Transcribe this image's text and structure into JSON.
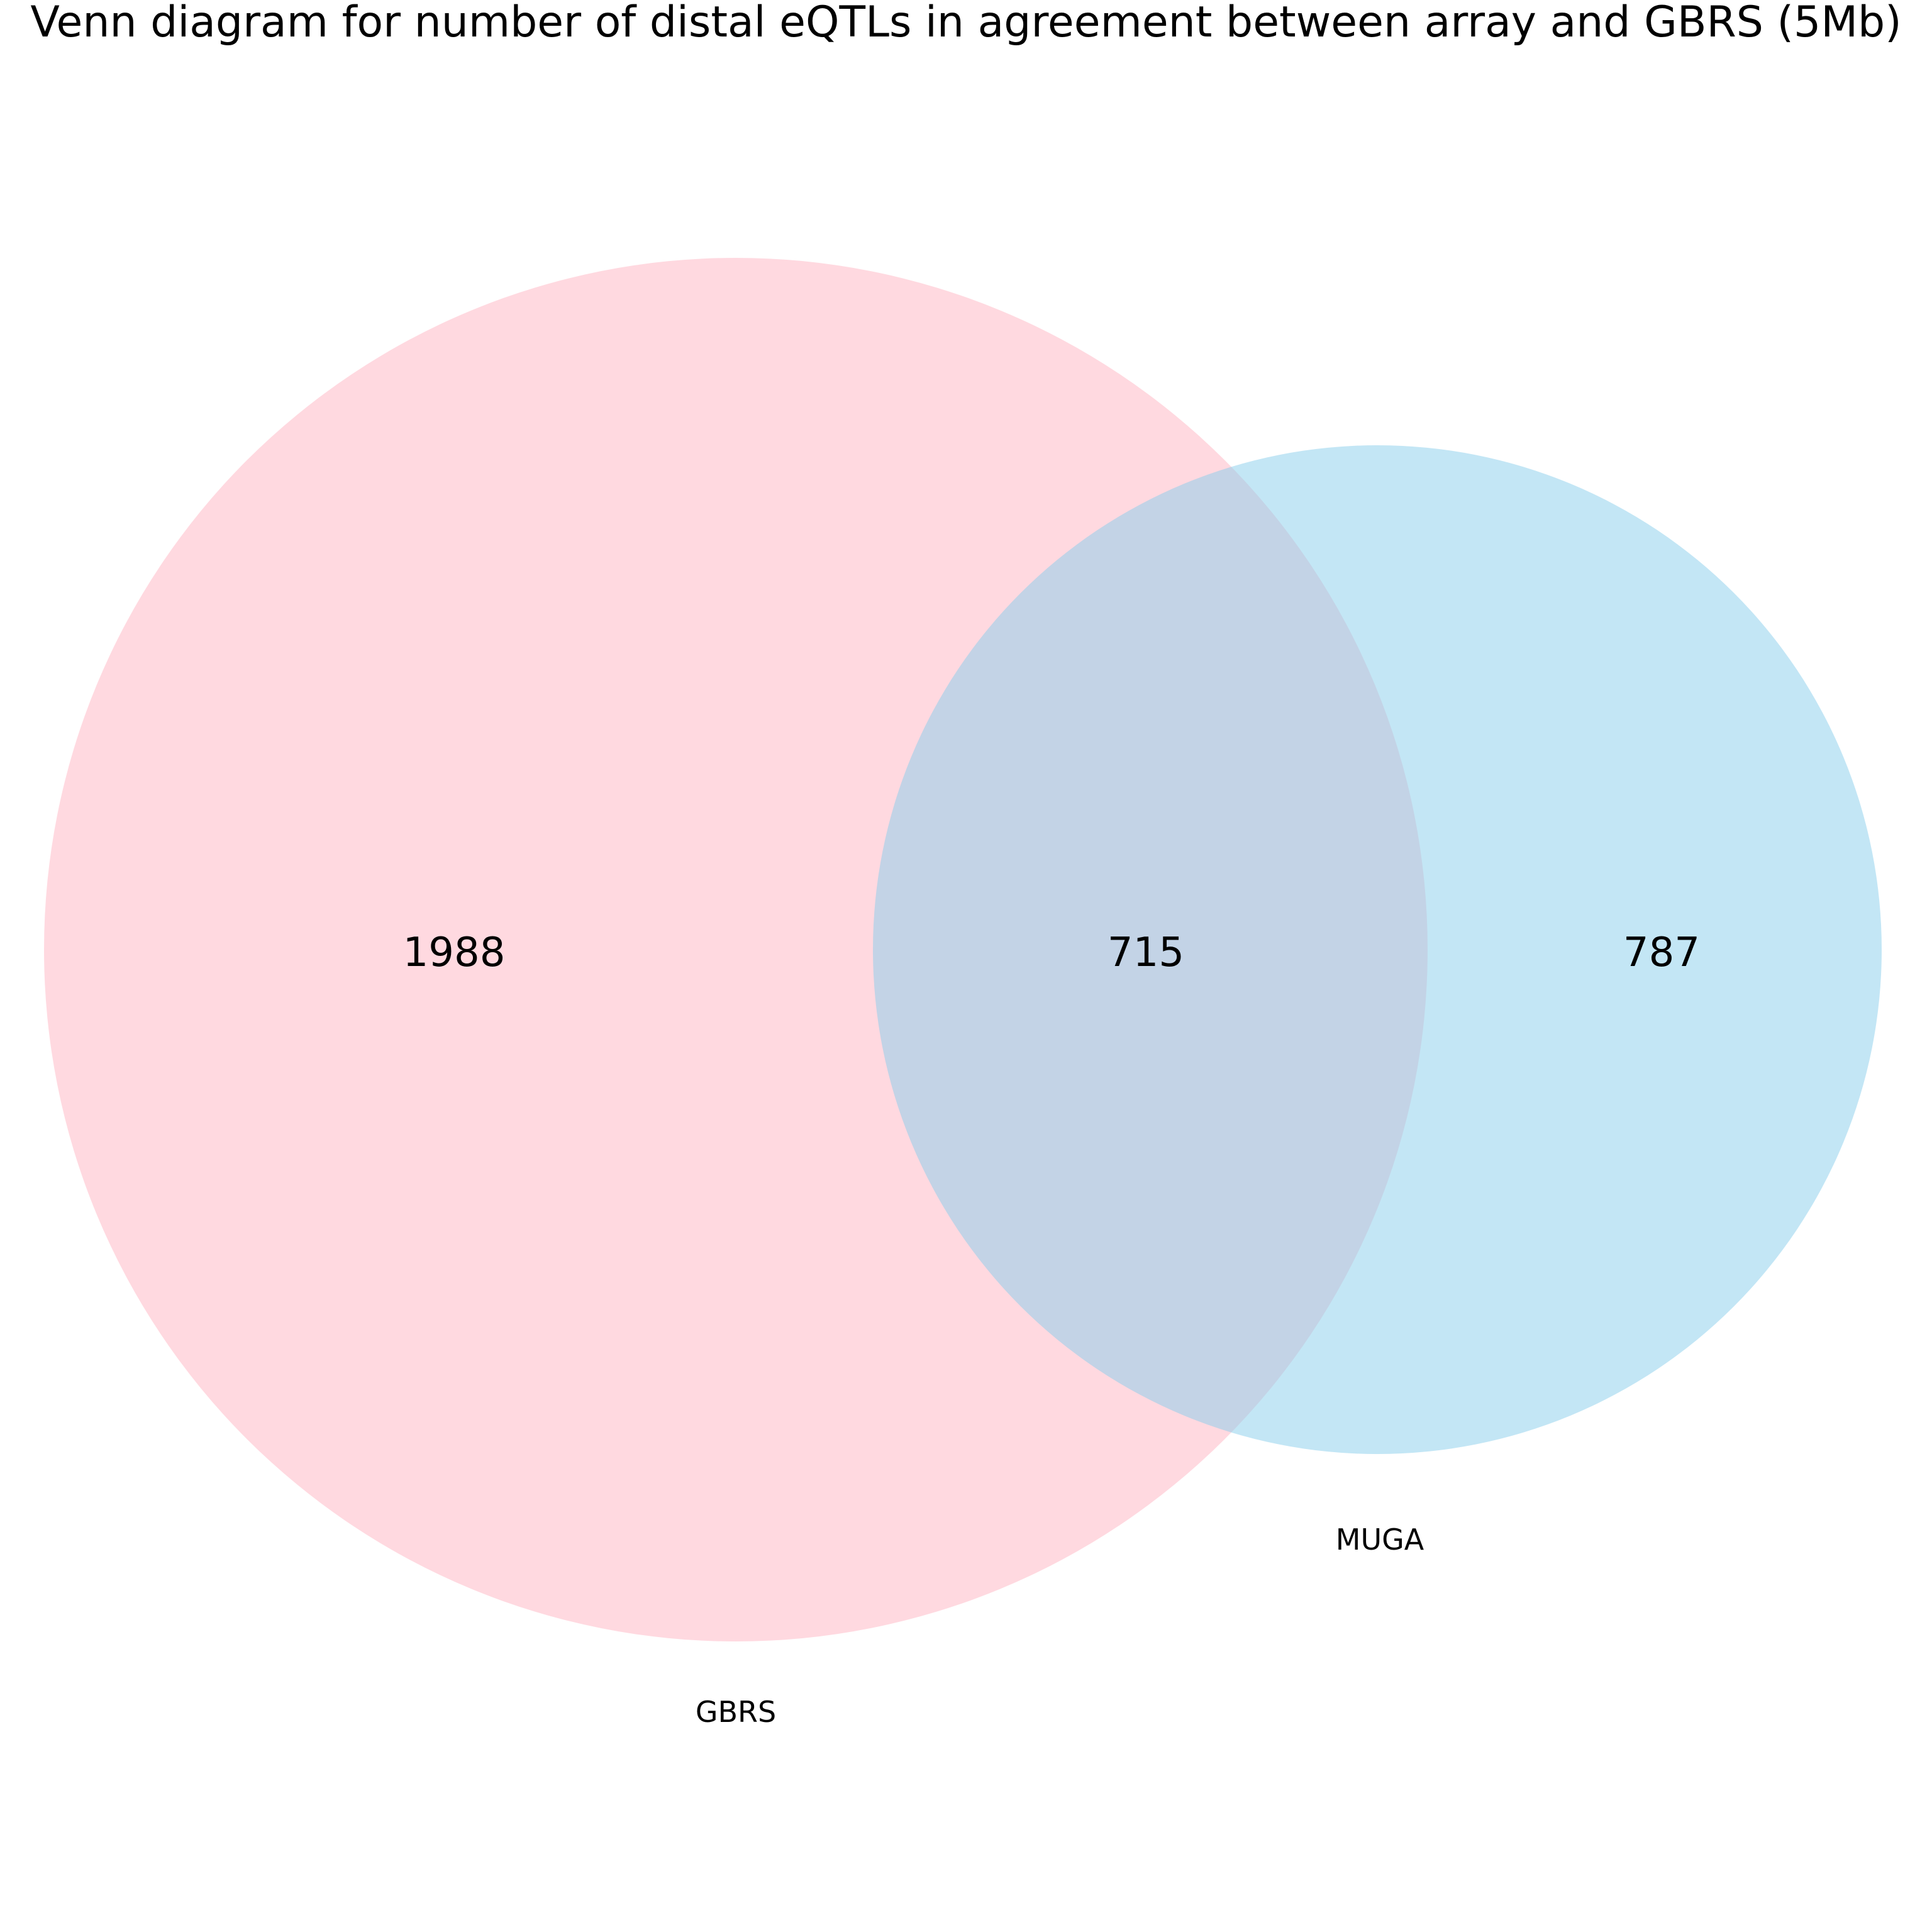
{
  "chart_data": {
    "type": "venn",
    "title": "Venn diagram for number of distal eQTLs in agreement between array and GBRS (5Mb)",
    "sets": [
      {
        "name": "GBRS",
        "only": 1988,
        "color": "#ffc0cb",
        "opacity": 0.6
      },
      {
        "name": "MUGA",
        "only": 787,
        "color": "#87ceeb",
        "opacity": 0.5
      }
    ],
    "intersection": 715
  }
}
